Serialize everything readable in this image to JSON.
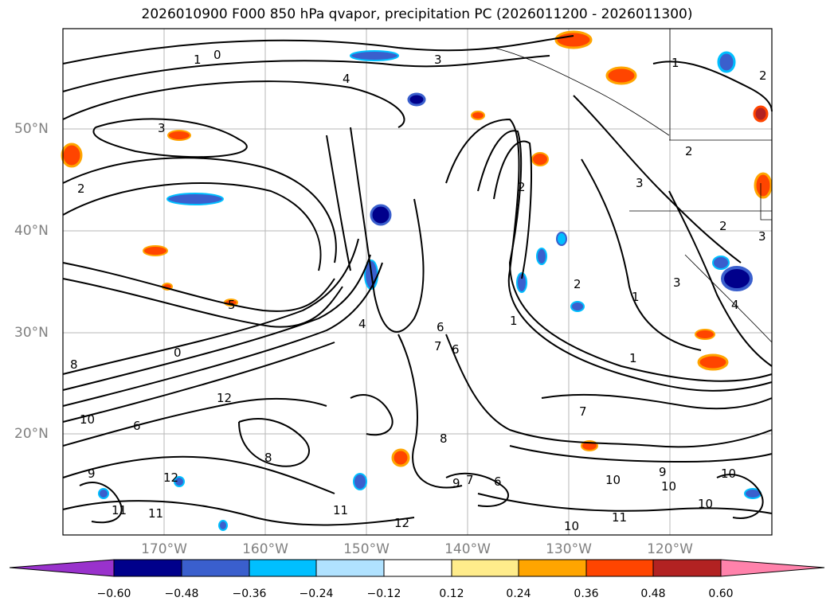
{
  "title": "2026010900 F000 850 hPa qvapor, precipitation PC (2026011200 - 2026011300)",
  "map": {
    "lat_labels": [
      "50°N",
      "40°N",
      "30°N",
      "20°N"
    ],
    "lon_labels": [
      "170°W",
      "160°W",
      "150°W",
      "140°W",
      "130°W",
      "120°W"
    ],
    "contour_labels": [
      "1",
      "0",
      "3",
      "4",
      "3",
      "2",
      "1",
      "2",
      "3",
      "3",
      "2",
      "3",
      "2",
      "1",
      "2",
      "4",
      "0",
      "8",
      "6",
      "7",
      "6",
      "1",
      "12",
      "10",
      "6",
      "8",
      "9",
      "12",
      "7",
      "8",
      "7",
      "6",
      "9",
      "10",
      "11",
      "11",
      "12",
      "10",
      "9",
      "10",
      "10",
      "11",
      "10",
      "11",
      "1",
      "2",
      "5",
      "4"
    ]
  },
  "colorbar": {
    "ticks": [
      "−0.60",
      "−0.48",
      "−0.36",
      "−0.24",
      "−0.12",
      "0.12",
      "0.24",
      "0.36",
      "0.48",
      "0.60"
    ],
    "colors": [
      "#9932cc",
      "#00008b",
      "#3a5fcd",
      "#00bfff",
      "#b0e2ff",
      "#ffffff",
      "#ffec8b",
      "#ffa500",
      "#ff4500",
      "#b22222",
      "#ff82ab"
    ]
  }
}
